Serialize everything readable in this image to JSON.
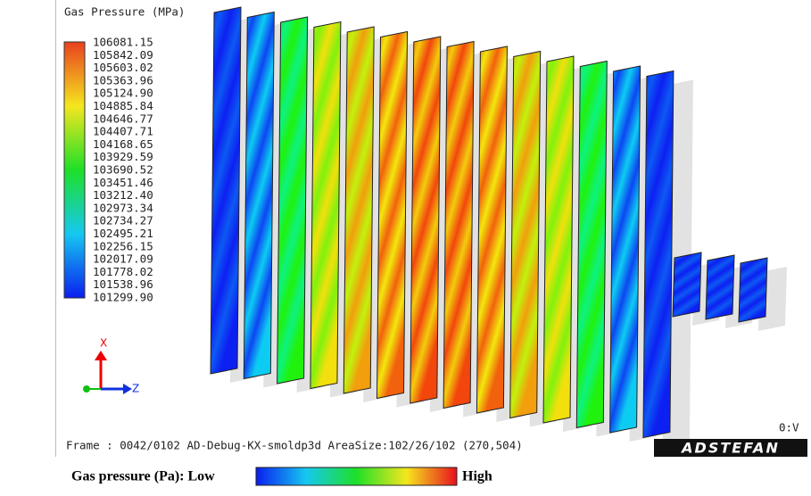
{
  "viewer": {
    "title": "Gas Pressure (MPa)",
    "legend_labels": [
      "106081.15",
      "105842.09",
      "105603.02",
      "105363.96",
      "105124.90",
      "104885.84",
      "104646.77",
      "104407.71",
      "104168.65",
      "103929.59",
      "103690.52",
      "103451.46",
      "103212.40",
      "102973.34",
      "102734.27",
      "102495.21",
      "102256.15",
      "102017.09",
      "101778.02",
      "101538.96",
      "101299.90"
    ],
    "axis_x": "X",
    "axis_z": "Z",
    "status": "Frame : 0042/0102  AD-Debug-KX-smoldp3d  AreaSize:102/26/102 (270,504)",
    "view": "0:V",
    "logo": "ADSTEFAN"
  },
  "caption": {
    "label": "Gas pressure (Pa):  Low",
    "high": "High"
  }
}
